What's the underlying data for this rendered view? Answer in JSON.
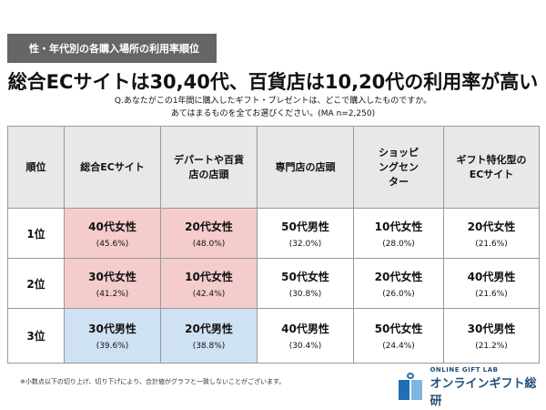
{
  "tag": "性・年代別の各購入場所の利用率順位",
  "title": "総合ECサイトは30,40代、百貨店は10,20代の利用率が高い",
  "question": [
    "Q.あなたがこの1年間に購入したギフト・プレゼントは、どこで購入したものですか。",
    "あてはまるものを全てお選びください。(MA n=2,250)"
  ],
  "headers": [
    "順位",
    "総合ECサイト",
    "デパートや百貨店の店頭",
    "専門店の店頭",
    "ショッピングセンター",
    "ギフト特化型のECサイト"
  ],
  "rows": [
    {
      "rank": "1位",
      "cells": [
        {
          "g": "40代女性",
          "p": "(45.6%)"
        },
        {
          "g": "20代女性",
          "p": "(48.0%)"
        },
        {
          "g": "50代男性",
          "p": "(32.0%)"
        },
        {
          "g": "10代女性",
          "p": "(28.0%)"
        },
        {
          "g": "20代女性",
          "p": "(21.6%)"
        }
      ]
    },
    {
      "rank": "2位",
      "cells": [
        {
          "g": "30代女性",
          "p": "(41.2%)"
        },
        {
          "g": "10代女性",
          "p": "(42.4%)"
        },
        {
          "g": "50代女性",
          "p": "(30.8%)"
        },
        {
          "g": "20代女性",
          "p": "(26.0%)"
        },
        {
          "g": "40代男性",
          "p": "(21.6%)"
        }
      ]
    },
    {
      "rank": "3位",
      "cells": [
        {
          "g": "30代男性",
          "p": "(39.6%)"
        },
        {
          "g": "20代男性",
          "p": "(38.8%)"
        },
        {
          "g": "40代男性",
          "p": "(30.4%)"
        },
        {
          "g": "50代女性",
          "p": "(24.4%)"
        },
        {
          "g": "30代男性",
          "p": "(21.2%)"
        }
      ]
    }
  ],
  "highlight_colors": {
    "female": "#f4cccc",
    "male": "#cfe2f3"
  },
  "note": "※小数点以下の切り上げ、切り下げにより、合計値がグラフと一致しないことがございます。",
  "logo": {
    "en": "ONLINE GIFT LAB",
    "ja": "オンラインギフト総研"
  }
}
